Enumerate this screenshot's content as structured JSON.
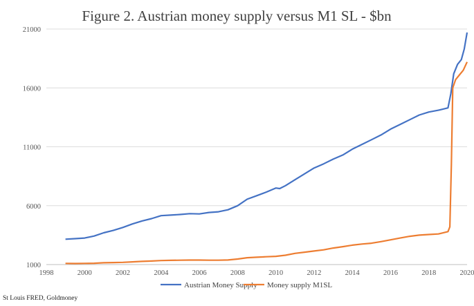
{
  "chart_data": {
    "type": "line",
    "title": "Figure 2. Austrian money supply versus M1 SL - $bn",
    "xlabel": "",
    "ylabel": "",
    "xlim": [
      1998,
      2020
    ],
    "ylim": [
      1000,
      21000
    ],
    "x_ticks": [
      "1998",
      "2000",
      "2002",
      "2004",
      "2006",
      "2008",
      "2010",
      "2012",
      "2014",
      "2016",
      "2018",
      "2020"
    ],
    "y_ticks": [
      "1000",
      "6000",
      "11000",
      "16000",
      "21000"
    ],
    "grid": "horizontal",
    "legend_position": "bottom",
    "series": [
      {
        "name": "Austrian Money Supply",
        "color": "#4472C4",
        "x": [
          1999.0,
          1999.5,
          2000.0,
          2000.5,
          2001.0,
          2001.5,
          2002.0,
          2002.5,
          2003.0,
          2003.5,
          2004.0,
          2004.5,
          2005.0,
          2005.5,
          2006.0,
          2006.5,
          2007.0,
          2007.5,
          2008.0,
          2008.5,
          2009.0,
          2009.5,
          2010.0,
          2010.2,
          2010.5,
          2011.0,
          2011.5,
          2012.0,
          2012.5,
          2013.0,
          2013.5,
          2014.0,
          2014.5,
          2015.0,
          2015.5,
          2016.0,
          2016.5,
          2017.0,
          2017.5,
          2018.0,
          2018.5,
          2019.0,
          2019.15,
          2019.3,
          2019.5,
          2019.7,
          2019.85,
          2020.0
        ],
        "values": [
          3150,
          3200,
          3250,
          3420,
          3700,
          3900,
          4150,
          4450,
          4700,
          4900,
          5150,
          5200,
          5250,
          5320,
          5300,
          5420,
          5480,
          5650,
          6000,
          6550,
          6850,
          7150,
          7500,
          7450,
          7700,
          8200,
          8700,
          9200,
          9550,
          9950,
          10300,
          10800,
          11200,
          11600,
          12000,
          12500,
          12900,
          13300,
          13700,
          13950,
          14100,
          14300,
          15500,
          17200,
          18000,
          18400,
          19300,
          20700
        ]
      },
      {
        "name": "Money supply M1SL",
        "color": "#ED7D31",
        "x": [
          1999.0,
          1999.5,
          2000.0,
          2000.5,
          2001.0,
          2001.5,
          2002.0,
          2002.5,
          2003.0,
          2003.5,
          2004.0,
          2004.5,
          2005.0,
          2005.5,
          2006.0,
          2006.5,
          2007.0,
          2007.5,
          2008.0,
          2008.5,
          2009.0,
          2009.5,
          2010.0,
          2010.5,
          2011.0,
          2011.5,
          2012.0,
          2012.5,
          2013.0,
          2013.5,
          2014.0,
          2014.5,
          2015.0,
          2015.5,
          2016.0,
          2016.5,
          2017.0,
          2017.5,
          2018.0,
          2018.5,
          2019.0,
          2019.1,
          2019.18,
          2019.25,
          2019.4,
          2019.6,
          2019.8,
          2020.0
        ],
        "values": [
          1100,
          1090,
          1100,
          1110,
          1150,
          1170,
          1190,
          1230,
          1270,
          1300,
          1340,
          1360,
          1370,
          1380,
          1380,
          1370,
          1370,
          1390,
          1470,
          1580,
          1620,
          1660,
          1700,
          1790,
          1950,
          2050,
          2150,
          2250,
          2400,
          2520,
          2650,
          2740,
          2810,
          2950,
          3100,
          3250,
          3400,
          3500,
          3550,
          3600,
          3800,
          4200,
          9500,
          16000,
          16700,
          17100,
          17500,
          18200
        ]
      }
    ]
  },
  "source": "St Louis FRED, Goldmoney"
}
